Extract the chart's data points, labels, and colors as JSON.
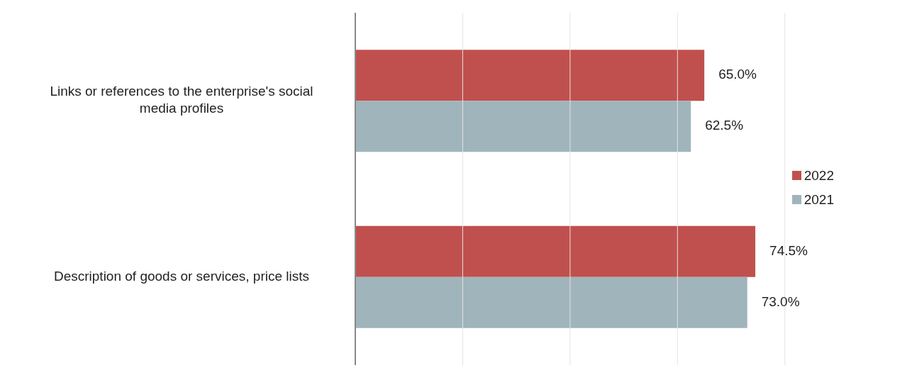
{
  "chart_data": {
    "type": "bar",
    "orientation": "horizontal",
    "categories": [
      "Links or references to the enterprise's social media profiles",
      "Description of goods or services, price lists"
    ],
    "series": [
      {
        "name": "2022",
        "color": "#c0504d",
        "values": [
          65.0,
          74.5
        ],
        "value_labels": [
          "65.0%",
          "74.5%"
        ]
      },
      {
        "name": "2021",
        "color": "#a0b4bb",
        "values": [
          62.5,
          73.0
        ],
        "value_labels": [
          "62.5%",
          "73.0%"
        ]
      }
    ],
    "xlim": [
      0,
      80
    ],
    "xticks": [
      {
        "value": 0,
        "label": null
      },
      {
        "value": 20,
        "label": null
      },
      {
        "value": 40,
        "label": null
      },
      {
        "value": 60,
        "label": null
      },
      {
        "value": 80,
        "label": null
      }
    ],
    "tick_labels": "y",
    "grid": "x",
    "legend": "right"
  }
}
